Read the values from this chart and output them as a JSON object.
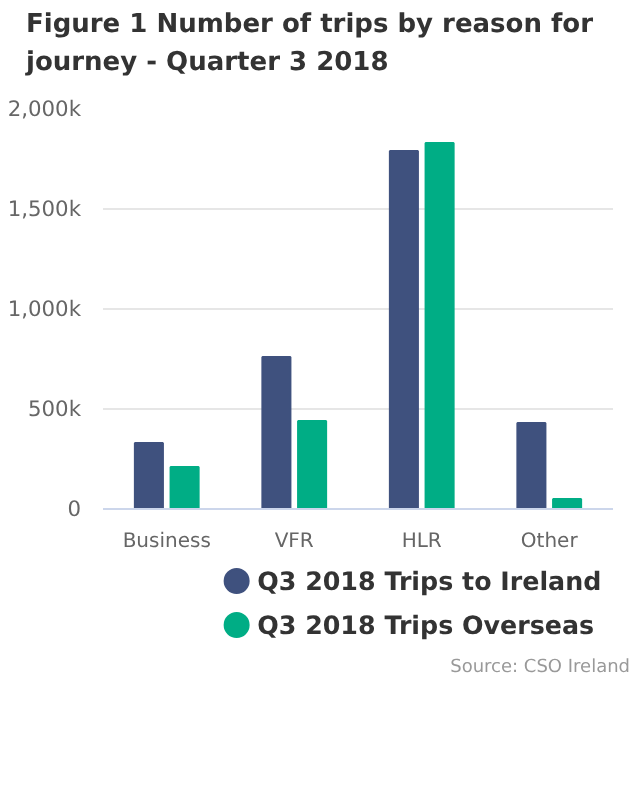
{
  "chart_data": {
    "type": "bar",
    "title": "Figure 1 Number of trips by reason for journey - Quarter 3 2018",
    "categories": [
      "Business",
      "VFR",
      "HLR",
      "Other"
    ],
    "series": [
      {
        "name": "Q3 2018 Trips to Ireland",
        "color": "#3f517e",
        "values": [
          330,
          760,
          1790,
          430
        ]
      },
      {
        "name": "Q3 2018 Trips Overseas",
        "color": "#00ad85",
        "values": [
          210,
          440,
          1830,
          50
        ]
      }
    ],
    "ylim": [
      0,
      2000
    ],
    "yticks": [
      0,
      {
        "value": 500,
        "label": "500k"
      },
      {
        "value": 1000,
        "label": "1,000k"
      },
      {
        "value": 1500,
        "label": "1,500k"
      },
      {
        "value": 2000,
        "label": "2,000k"
      }
    ],
    "grid": "y",
    "legend": "bottom",
    "annotations": [
      "Source: CSO Ireland"
    ]
  }
}
